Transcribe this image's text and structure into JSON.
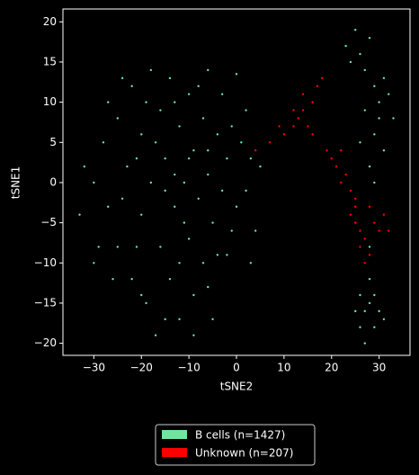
{
  "chart_data": {
    "type": "scatter",
    "x_label": "tSNE2",
    "y_label": "tSNE1",
    "xlim": [
      -36.5,
      36.5
    ],
    "ylim": [
      -21.5,
      21.6
    ],
    "xticks": [
      {
        "value": -30,
        "label": "−30"
      },
      {
        "value": -20,
        "label": "−20"
      },
      {
        "value": -10,
        "label": "−10"
      },
      0,
      10,
      20,
      30
    ],
    "yticks": [
      {
        "value": -20,
        "label": "−20"
      },
      {
        "value": -15,
        "label": "−15"
      },
      {
        "value": -10,
        "label": "−10"
      },
      {
        "value": -5,
        "label": "−5"
      },
      0,
      5,
      10,
      15,
      20
    ],
    "legend": "lower center",
    "series": [
      {
        "name": "B cells (n=1427)",
        "color": "#6ee6a0",
        "x": [
          -30,
          -28,
          -27,
          -25,
          -25,
          -23,
          -22,
          -22,
          -20,
          -20,
          -19,
          -18,
          -18,
          -17,
          -16,
          -16,
          -15,
          -14,
          -14,
          -13,
          -12,
          -12,
          -11,
          -10,
          -10,
          -9,
          -9,
          -8,
          -7,
          -7,
          -6,
          -6,
          -5,
          -5,
          -4,
          -3,
          -3,
          -2,
          -2,
          -1,
          0,
          0,
          1,
          2,
          3,
          4,
          -33,
          -32,
          -29,
          -27,
          -26,
          -24,
          -21,
          -21,
          -19,
          -17,
          -15,
          -13,
          -12,
          -11,
          -8,
          -6,
          -4,
          -1,
          2,
          5,
          -24,
          -9,
          -15,
          3,
          -30,
          -6,
          -10,
          -13,
          -20,
          23,
          25,
          26,
          27,
          28,
          29,
          30,
          31,
          32,
          33,
          30,
          31,
          29,
          28,
          26,
          27,
          29,
          24,
          26,
          27,
          28,
          29,
          26,
          28,
          30,
          27,
          28,
          31,
          25,
          29
        ],
        "y": [
          0,
          5,
          -3,
          8,
          -8,
          2,
          12,
          -12,
          6,
          -4,
          -15,
          14,
          0,
          -19,
          9,
          -8,
          3,
          -12,
          13,
          -3,
          7,
          -17,
          0,
          11,
          -7,
          4,
          -14,
          -2,
          8,
          -10,
          14,
          1,
          -5,
          -17,
          6,
          -1,
          11,
          -9,
          3,
          7,
          13.5,
          -3,
          5,
          -1,
          3,
          -6,
          -4,
          2,
          -8,
          10,
          -12,
          -2,
          -8,
          3,
          10,
          5,
          -1,
          10,
          -10,
          -5,
          12,
          -13,
          -9,
          -6,
          9,
          2,
          13,
          -19,
          -17,
          -10,
          -10,
          4,
          3,
          1,
          -14,
          17,
          19,
          16,
          14,
          18,
          12,
          10,
          13,
          11,
          8,
          8,
          4,
          6,
          2,
          5,
          9,
          0,
          15,
          -14,
          -16,
          -15,
          -18,
          -18,
          -12,
          -16,
          -20,
          -8,
          -17,
          -16,
          -14
        ]
      },
      {
        "name": "Unknown (n=207)",
        "color": "#ff0000",
        "x": [
          4,
          7,
          10,
          12,
          13,
          14,
          15,
          16,
          14,
          17,
          16,
          18,
          12,
          19,
          20,
          21,
          22,
          23,
          24,
          25,
          24,
          25,
          26,
          27,
          26,
          28,
          29,
          30,
          31,
          28,
          32,
          27,
          25,
          9,
          22
        ],
        "y": [
          4,
          5,
          6,
          7,
          8,
          9,
          7,
          6,
          11,
          12,
          10,
          13,
          9,
          4,
          3,
          2,
          4,
          1,
          -1,
          -2,
          -4,
          -5,
          -6,
          -7,
          -8,
          -9,
          -5,
          -6,
          -4,
          -3,
          -6,
          -10,
          -3,
          7,
          0
        ]
      }
    ]
  }
}
